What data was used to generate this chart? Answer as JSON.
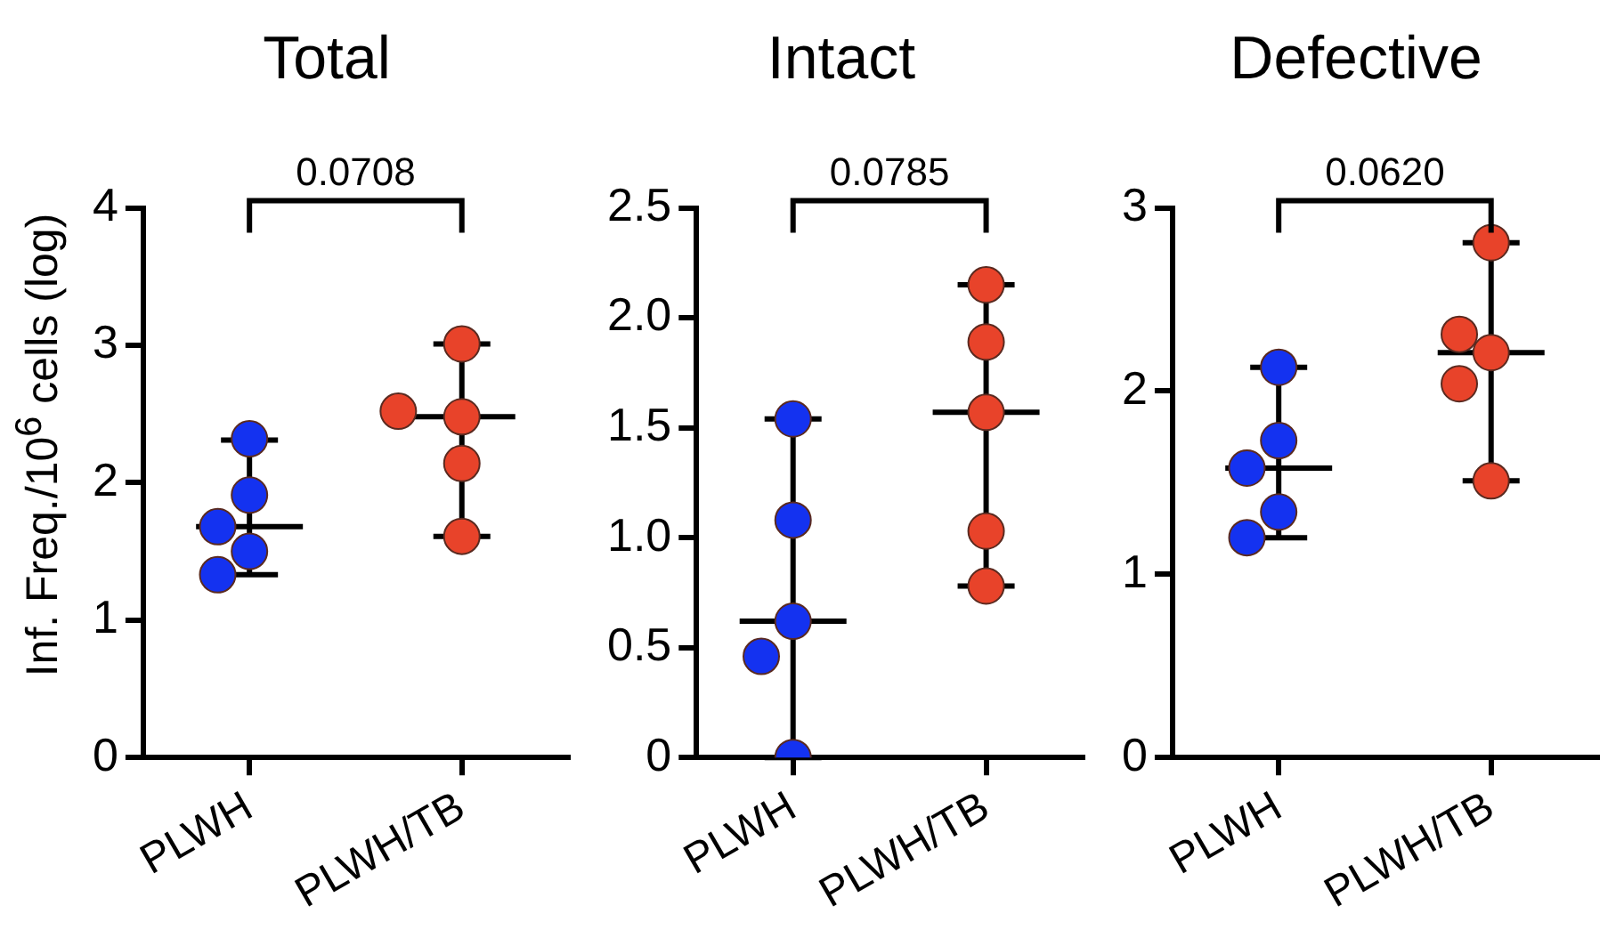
{
  "chart_data": [
    {
      "type": "box",
      "title": "Total",
      "ylabel": "Inf. Freq./10$^{6}$ cells (log)",
      "categories": [
        "PLWH",
        "PLWH/TB"
      ],
      "ylim": [
        0,
        4
      ],
      "yticks": [
        0,
        1,
        2,
        3,
        4
      ],
      "grid": false,
      "annotations": [
        "0.0708"
      ],
      "boxes": [
        {
          "low": 1.33,
          "q1": 1.68,
          "median": 1.68,
          "q3": 1.68,
          "high": 2.31
        },
        {
          "low": 1.61,
          "q1": 2.48,
          "median": 2.48,
          "q3": 2.48,
          "high": 3.01
        }
      ],
      "series": [
        {
          "type": "scatter",
          "color": "#1432f0",
          "x": [
            "PLWH",
            "PLWH",
            "PLWH",
            "PLWH",
            "PLWH"
          ],
          "values": [
            2.32,
            1.91,
            1.68,
            1.5,
            1.33
          ]
        },
        {
          "type": "scatter",
          "color": "#e8432a",
          "x": [
            "PLWH/TB",
            "PLWH/TB",
            "PLWH/TB",
            "PLWH/TB",
            "PLWH/TB"
          ],
          "values": [
            3.01,
            2.48,
            2.52,
            2.14,
            1.61
          ]
        }
      ]
    },
    {
      "type": "box",
      "title": "Intact",
      "categories": [
        "PLWH",
        "PLWH/TB"
      ],
      "ylim": [
        0,
        2.5
      ],
      "yticks": [
        0,
        0.5,
        {
          "value": 1,
          "label": "1.0"
        },
        1.5,
        {
          "value": 2,
          "label": "2.0"
        },
        2.5
      ],
      "grid": false,
      "annotations": [
        "0.0785"
      ],
      "boxes": [
        {
          "low": 0,
          "q1": 0.62,
          "median": 0.62,
          "q3": 0.62,
          "high": 1.54
        },
        {
          "low": 0.78,
          "q1": 1.57,
          "median": 1.57,
          "q3": 1.57,
          "high": 2.15
        }
      ],
      "series": [
        {
          "type": "scatter",
          "color": "#1432f0",
          "x": [
            "PLWH",
            "PLWH",
            "PLWH",
            "PLWH",
            "PLWH"
          ],
          "values": [
            1.54,
            1.08,
            0.62,
            0.46,
            0
          ]
        },
        {
          "type": "scatter",
          "color": "#e8432a",
          "x": [
            "PLWH/TB",
            "PLWH/TB",
            "PLWH/TB",
            "PLWH/TB",
            "PLWH/TB"
          ],
          "values": [
            2.15,
            1.89,
            1.57,
            1.03,
            0.78
          ]
        }
      ]
    },
    {
      "type": "box",
      "title": "Defective",
      "categories": [
        "PLWH",
        "PLWH/TB"
      ],
      "ylim": [
        0,
        3
      ],
      "yticks": [
        0,
        1,
        2,
        3
      ],
      "grid": false,
      "annotations": [
        "0.0620"
      ],
      "boxes": [
        {
          "low": 1.2,
          "q1": 1.58,
          "median": 1.58,
          "q3": 1.58,
          "high": 2.13
        },
        {
          "low": 1.51,
          "q1": 2.21,
          "median": 2.21,
          "q3": 2.21,
          "high": 2.81
        }
      ],
      "series": [
        {
          "type": "scatter",
          "color": "#1432f0",
          "x": [
            "PLWH",
            "PLWH",
            "PLWH",
            "PLWH",
            "PLWH"
          ],
          "values": [
            2.13,
            1.73,
            1.58,
            1.34,
            1.2
          ]
        },
        {
          "type": "scatter",
          "color": "#e8432a",
          "x": [
            "PLWH/TB",
            "PLWH/TB",
            "PLWH/TB",
            "PLWH/TB",
            "PLWH/TB"
          ],
          "values": [
            2.81,
            2.21,
            2.31,
            2.04,
            1.51
          ]
        }
      ]
    }
  ]
}
